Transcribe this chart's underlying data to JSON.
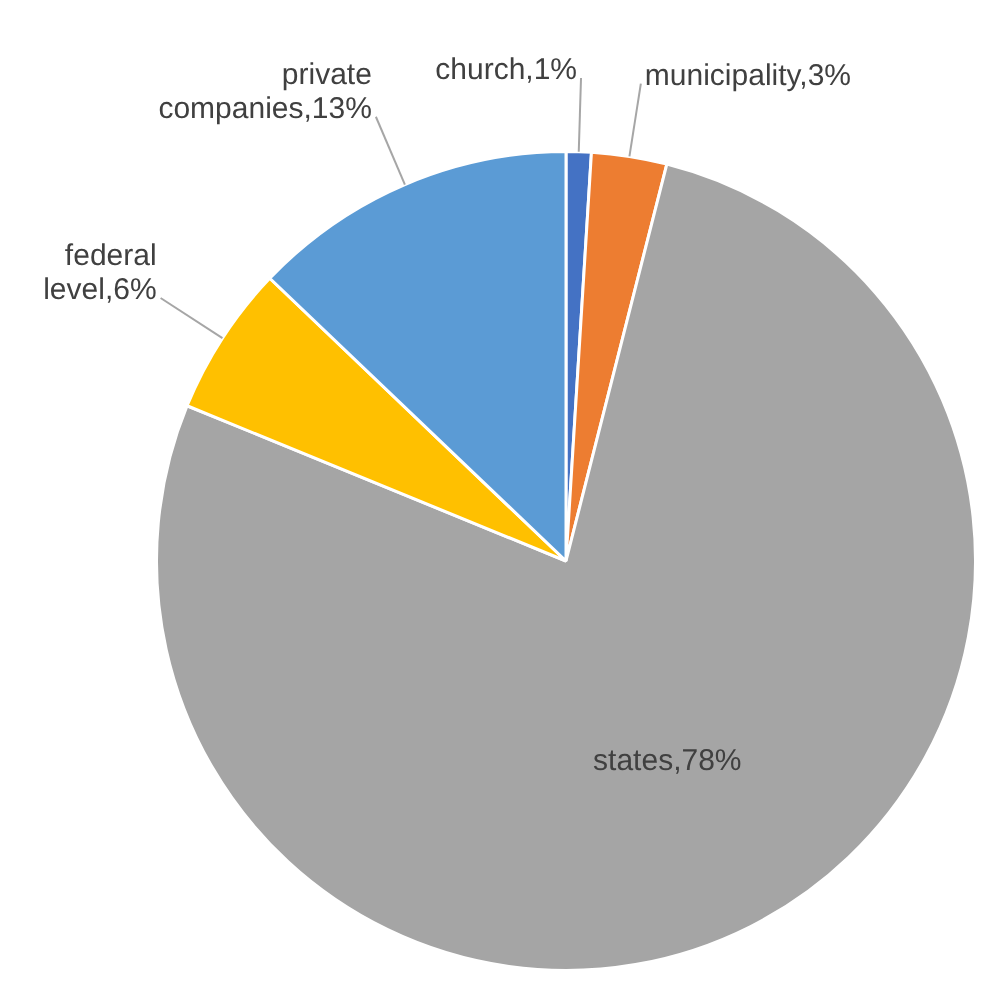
{
  "chart_data": {
    "type": "pie",
    "categories": [
      "church",
      "municipality",
      "states",
      "federal level",
      "private companies"
    ],
    "values": [
      1,
      3,
      78,
      6,
      13
    ],
    "colors": [
      "#4472c4",
      "#ed7d31",
      "#a5a5a5",
      "#ffc000",
      "#5b9bd5"
    ],
    "value_labels": [
      "1%",
      "3%",
      "78%",
      "6%",
      "13%"
    ],
    "legend": false
  }
}
